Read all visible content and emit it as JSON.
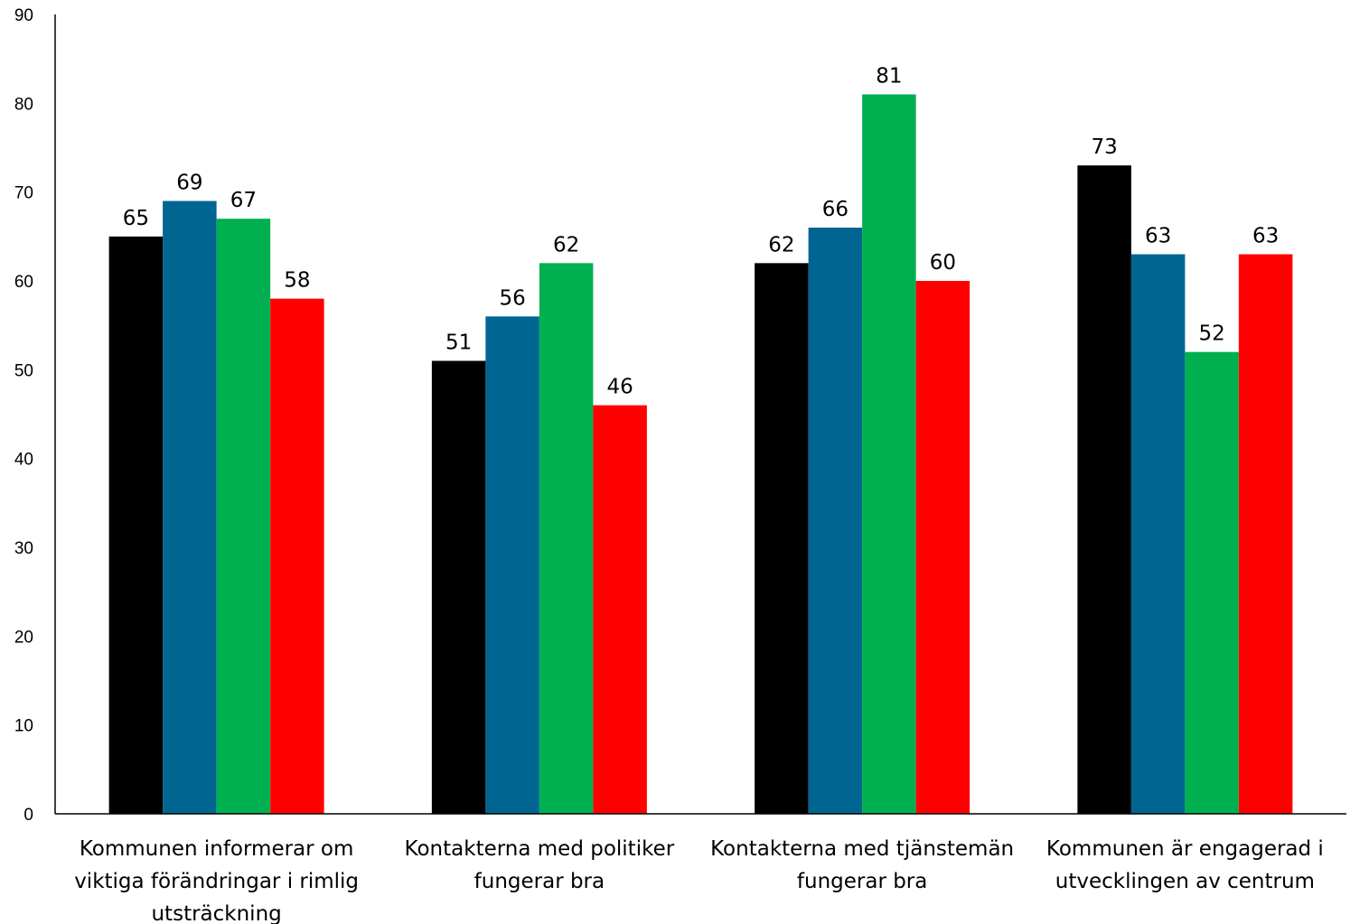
{
  "chart_data": {
    "type": "bar",
    "title": "",
    "xlabel": "",
    "ylabel": "",
    "ylim": [
      0,
      90
    ],
    "yticks": [
      0,
      10,
      20,
      30,
      40,
      50,
      60,
      70,
      80,
      90
    ],
    "grid": false,
    "legend": "none",
    "categories": [
      [
        "Kommunen informerar om",
        "viktiga förändringar i rimlig",
        "utsträckning"
      ],
      [
        "Kontakterna med politiker",
        "fungerar bra"
      ],
      [
        "Kontakterna med tjänstemän",
        "fungerar bra"
      ],
      [
        "Kommunen är engagerad i",
        "utvecklingen av centrum"
      ]
    ],
    "series": [
      {
        "color": "#000000",
        "values": [
          65,
          51,
          62,
          73
        ]
      },
      {
        "color": "#006691",
        "values": [
          69,
          56,
          66,
          63
        ]
      },
      {
        "color": "#00B050",
        "values": [
          67,
          62,
          81,
          52
        ]
      },
      {
        "color": "#FF0000",
        "values": [
          58,
          46,
          60,
          63
        ]
      }
    ]
  }
}
